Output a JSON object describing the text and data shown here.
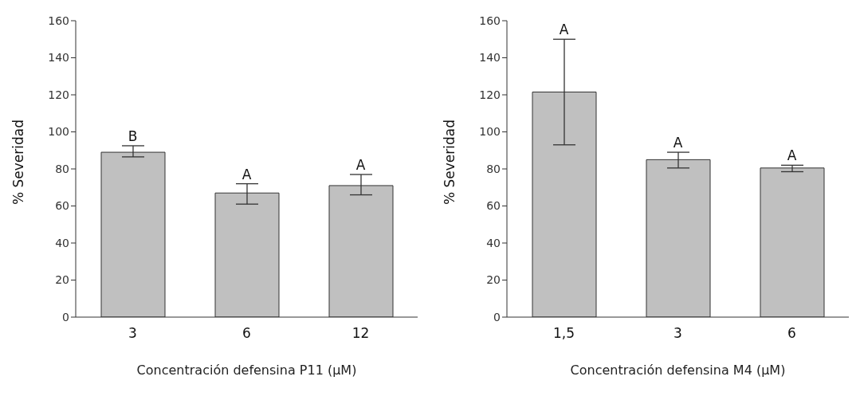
{
  "chart_data": [
    {
      "type": "bar",
      "xlabel": "Concentración defensina P11 (µM)",
      "ylabel": "% Severidad",
      "categories": [
        "3",
        "6",
        "12"
      ],
      "values": [
        89,
        67,
        71
      ],
      "color": "#c0c0c0",
      "errors": [
        [
          86.5,
          92.5
        ],
        [
          61,
          72
        ],
        [
          66,
          77
        ]
      ],
      "ylim": [
        0,
        160
      ],
      "yticks": [
        0,
        20,
        40,
        60,
        80,
        100,
        120,
        140,
        160
      ],
      "grid": false,
      "legend": false,
      "annotations": [
        {
          "text": "B",
          "x": "3",
          "y": 92.5
        },
        {
          "text": "A",
          "x": "6",
          "y": 72
        },
        {
          "text": "A",
          "x": "12",
          "y": 77
        }
      ]
    },
    {
      "type": "bar",
      "xlabel": "Concentración defensina M4 (µM)",
      "ylabel": "% Severidad",
      "categories": [
        "1,5",
        "3",
        "6"
      ],
      "values": [
        121.5,
        85,
        80.5
      ],
      "color": "#c0c0c0",
      "errors": [
        [
          93,
          150
        ],
        [
          80.5,
          89
        ],
        [
          78.5,
          82
        ]
      ],
      "ylim": [
        0,
        160
      ],
      "yticks": [
        0,
        20,
        40,
        60,
        80,
        100,
        120,
        140,
        160
      ],
      "grid": false,
      "legend": false,
      "annotations": [
        {
          "text": "A",
          "x": "1,5",
          "y": 150
        },
        {
          "text": "A",
          "x": "3",
          "y": 89
        },
        {
          "text": "A",
          "x": "6",
          "y": 82
        }
      ]
    }
  ]
}
